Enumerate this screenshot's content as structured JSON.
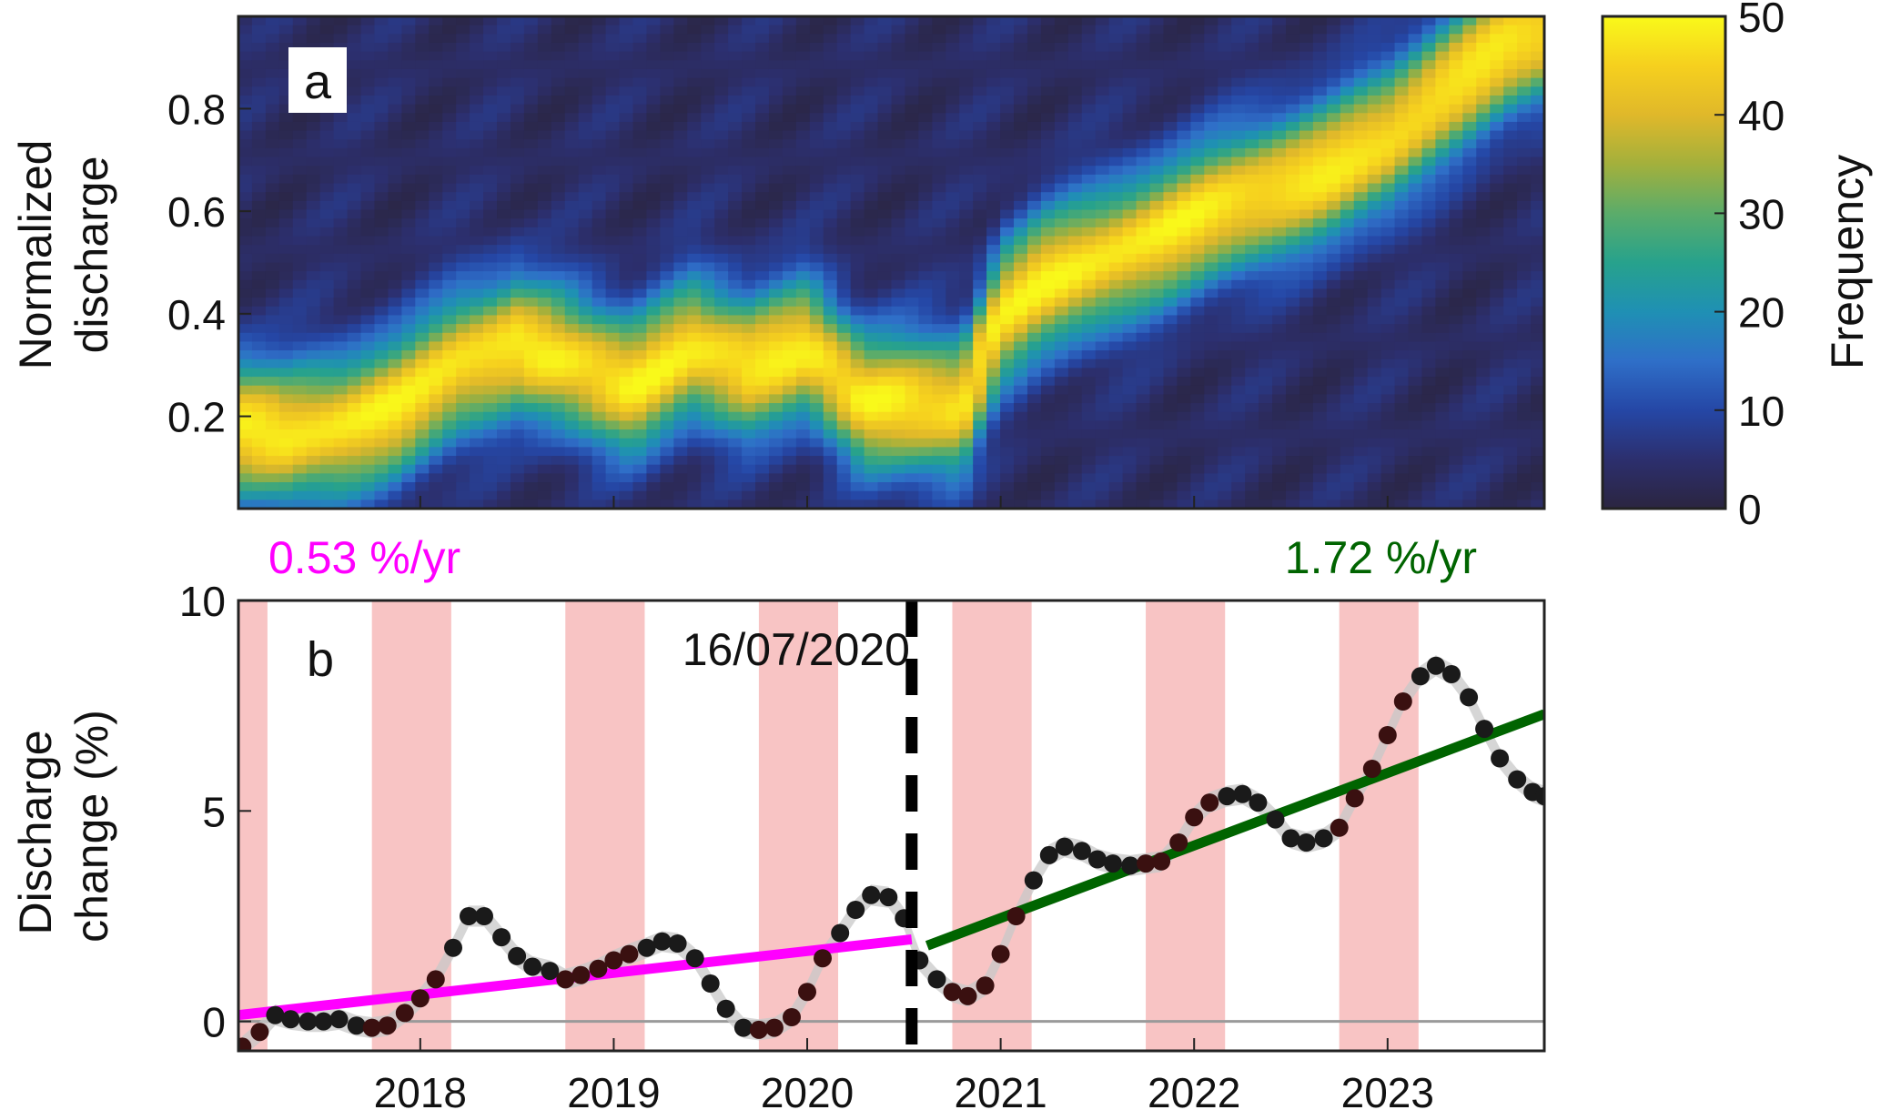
{
  "colors": {
    "pink_band": "#f8c4c4",
    "rate_before_color": "#ff00ff",
    "rate_after_color": "#006400",
    "zero_line": "#9a9a9a",
    "split_line": "#000000",
    "point_plain": "#1a1a1a",
    "point_band": "#3a1010",
    "uncertainty": "#c8c8c8",
    "colormap": [
      "#2b2540",
      "#2c2f6e",
      "#2547a6",
      "#2f6fc8",
      "#1f90b4",
      "#27a28c",
      "#5bac6a",
      "#a3b03c",
      "#e0b82a",
      "#f6d01e",
      "#f9f91a"
    ]
  },
  "chart_data": [
    {
      "panel": "a",
      "type": "heatmap",
      "panel_label": "a",
      "xlabel": "",
      "ylabel": "Normalized discharge",
      "ylim": [
        0.02,
        0.98
      ],
      "xlim": [
        2017.06,
        2023.81
      ],
      "y_ticks": [
        0.2,
        0.4,
        0.6,
        0.8
      ],
      "y_tick_labels": [
        "0.2",
        "0.4",
        "0.6",
        "0.8"
      ],
      "x_ticks": [
        2018,
        2019,
        2020,
        2021,
        2022,
        2023
      ],
      "colorbar": {
        "label": "Frequency",
        "range": [
          0,
          50
        ],
        "ticks": [
          0,
          10,
          20,
          30,
          40,
          50
        ],
        "tick_labels": [
          "0",
          "10",
          "20",
          "30",
          "40",
          "50"
        ]
      },
      "ridge": {
        "x": [
          2017.06,
          2017.3,
          2017.6,
          2017.9,
          2018.2,
          2018.5,
          2018.8,
          2019.1,
          2019.4,
          2019.7,
          2020.0,
          2020.3,
          2020.6,
          2020.8,
          2021.0,
          2021.2,
          2021.5,
          2021.8,
          2022.1,
          2022.4,
          2022.7,
          2023.0,
          2023.3,
          2023.6,
          2023.81
        ],
        "y": [
          0.18,
          0.16,
          0.18,
          0.22,
          0.3,
          0.34,
          0.3,
          0.26,
          0.33,
          0.3,
          0.33,
          0.23,
          0.22,
          0.22,
          0.4,
          0.46,
          0.5,
          0.55,
          0.6,
          0.64,
          0.68,
          0.74,
          0.84,
          0.92,
          0.95
        ]
      }
    },
    {
      "panel": "b",
      "type": "scatter",
      "panel_label": "b",
      "xlabel": "",
      "ylabel": "Discharge change (%)",
      "xlim": [
        2017.06,
        2023.81
      ],
      "ylim": [
        -0.7,
        10
      ],
      "y_ticks": [
        0,
        5,
        10
      ],
      "y_tick_labels": [
        "0",
        "5",
        "10"
      ],
      "x_ticks": [
        2018,
        2019,
        2020,
        2021,
        2022,
        2023
      ],
      "x_tick_labels": [
        "2018",
        "2019",
        "2020",
        "2021",
        "2022",
        "2023"
      ],
      "split_date": 2020.54,
      "split_label": "16/07/2020",
      "shaded_periods": [
        [
          2017.06,
          2017.21
        ],
        [
          2017.75,
          2018.16
        ],
        [
          2018.75,
          2019.16
        ],
        [
          2019.75,
          2020.16
        ],
        [
          2020.75,
          2021.16
        ],
        [
          2021.75,
          2022.16
        ],
        [
          2022.75,
          2023.16
        ]
      ],
      "series": [
        {
          "x": [
            2017.08,
            2017.17,
            2017.25,
            2017.33,
            2017.42,
            2017.5,
            2017.58,
            2017.67,
            2017.75,
            2017.83,
            2017.92,
            2018.0,
            2018.08,
            2018.17,
            2018.25,
            2018.33,
            2018.42,
            2018.5,
            2018.58,
            2018.67,
            2018.75,
            2018.83,
            2018.92,
            2019.0,
            2019.08,
            2019.17,
            2019.25,
            2019.33,
            2019.42,
            2019.5,
            2019.58,
            2019.67,
            2019.75,
            2019.83,
            2019.92,
            2020.0,
            2020.08,
            2020.17,
            2020.25,
            2020.33,
            2020.42,
            2020.5,
            2020.58,
            2020.67,
            2020.75,
            2020.83,
            2020.92,
            2021.0,
            2021.08,
            2021.17,
            2021.25,
            2021.33,
            2021.42,
            2021.5,
            2021.58,
            2021.67,
            2021.75,
            2021.83,
            2021.92,
            2022.0,
            2022.08,
            2022.17,
            2022.25,
            2022.33,
            2022.42,
            2022.5,
            2022.58,
            2022.67,
            2022.75,
            2022.83,
            2022.92,
            2023.0,
            2023.08,
            2023.17,
            2023.25,
            2023.33,
            2023.42,
            2023.5,
            2023.58,
            2023.67,
            2023.75,
            2023.81
          ],
          "y": [
            -0.6,
            -0.25,
            0.15,
            0.05,
            0.0,
            0.0,
            0.05,
            -0.1,
            -0.15,
            -0.1,
            0.2,
            0.55,
            1.0,
            1.75,
            2.5,
            2.5,
            2.0,
            1.55,
            1.3,
            1.2,
            1.0,
            1.1,
            1.25,
            1.45,
            1.6,
            1.75,
            1.9,
            1.85,
            1.5,
            0.9,
            0.3,
            -0.15,
            -0.2,
            -0.15,
            0.1,
            0.7,
            1.5,
            2.1,
            2.65,
            3.0,
            2.95,
            2.45,
            1.45,
            1.0,
            0.7,
            0.6,
            0.85,
            1.6,
            2.5,
            3.35,
            3.95,
            4.15,
            4.05,
            3.85,
            3.75,
            3.7,
            3.75,
            3.8,
            4.25,
            4.85,
            5.2,
            5.35,
            5.4,
            5.2,
            4.8,
            4.35,
            4.25,
            4.35,
            4.6,
            5.3,
            6.0,
            6.8,
            7.6,
            8.2,
            8.45,
            8.25,
            7.7,
            6.95,
            6.25,
            5.75,
            5.45,
            5.35
          ]
        }
      ],
      "trends": [
        {
          "label": "0.53 %/yr",
          "x": [
            2017.06,
            2020.54
          ],
          "y": [
            0.15,
            1.95
          ]
        },
        {
          "label": "1.72 %/yr",
          "x": [
            2020.62,
            2023.81
          ],
          "y": [
            1.8,
            7.3
          ]
        }
      ]
    }
  ]
}
